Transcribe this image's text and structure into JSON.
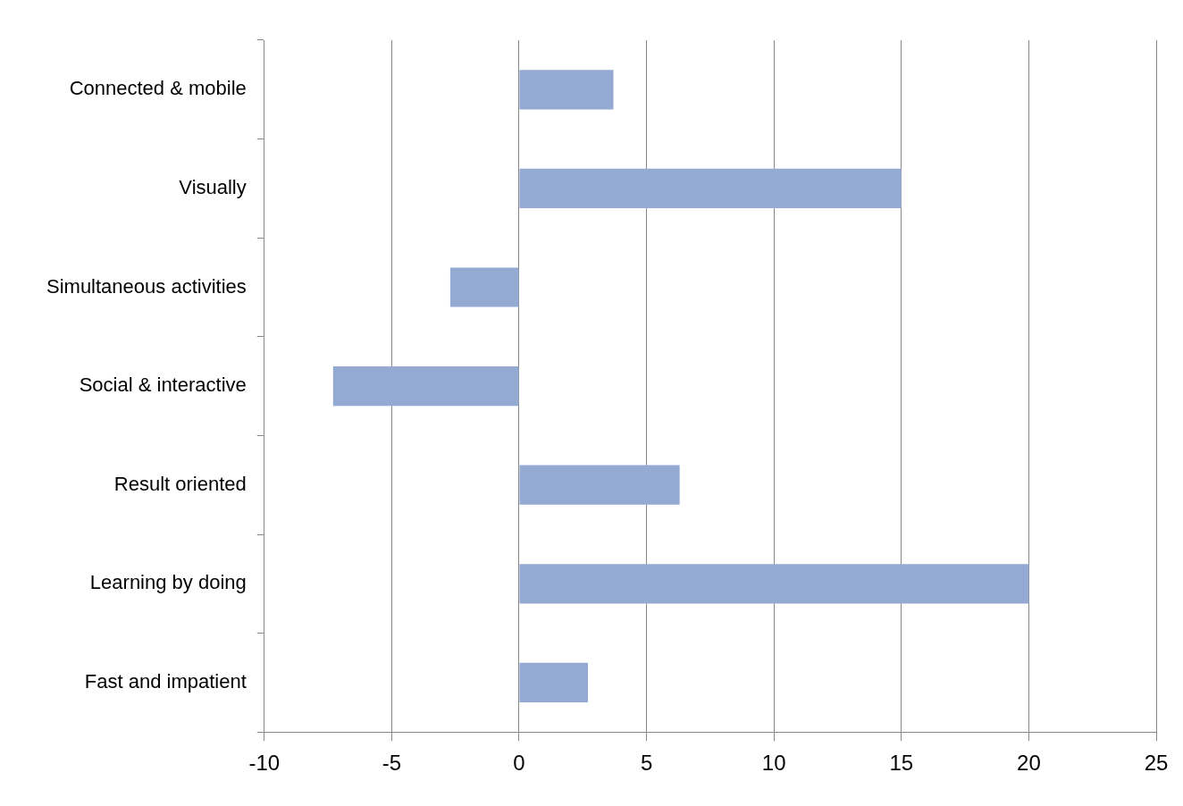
{
  "chart_data": {
    "type": "bar",
    "orientation": "horizontal",
    "categories": [
      "Connected & mobile",
      "Visually",
      "Simultaneous activities",
      "Social & interactive",
      "Result oriented",
      "Learning by doing",
      "Fast and impatient"
    ],
    "values": [
      3.7,
      15,
      -2.7,
      -7.3,
      6.3,
      20,
      2.7
    ],
    "color": "#95aad3",
    "xlim": [
      -10,
      25
    ],
    "xticks": [
      -10,
      -5,
      0,
      5,
      10,
      15,
      20,
      25
    ],
    "grid": "x",
    "legend": false
  }
}
